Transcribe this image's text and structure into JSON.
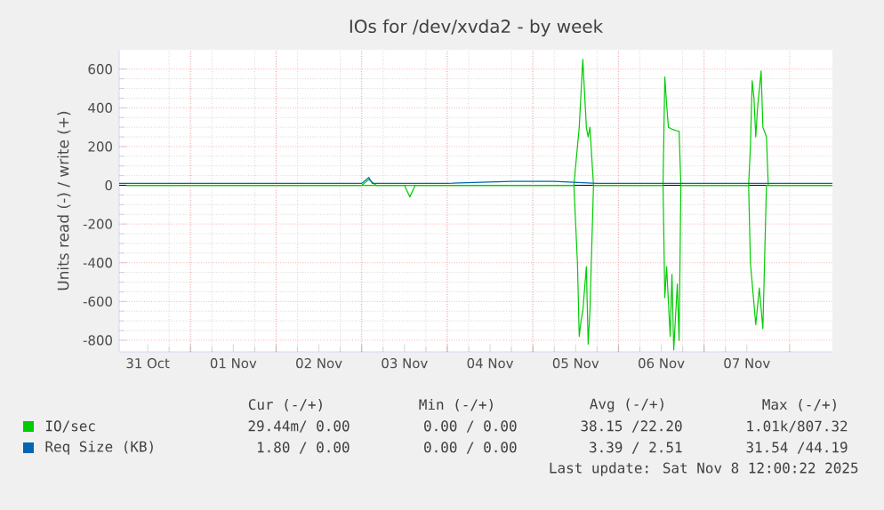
{
  "chart_data": {
    "type": "line",
    "title": "IOs for /dev/xvda2 - by week",
    "ylabel": "Units read (-) / write (+)",
    "xlim": [
      "2025-10-31T04:00",
      "2025-11-08T12:00"
    ],
    "xticks": [
      {
        "value": "2025-10-31T12:00",
        "label": "31 Oct"
      },
      {
        "value": "2025-11-01T12:00",
        "label": "01 Nov"
      },
      {
        "value": "2025-11-02T12:00",
        "label": "02 Nov"
      },
      {
        "value": "2025-11-03T12:00",
        "label": "03 Nov"
      },
      {
        "value": "2025-11-04T12:00",
        "label": "04 Nov"
      },
      {
        "value": "2025-11-05T12:00",
        "label": "05 Nov"
      },
      {
        "value": "2025-11-06T12:00",
        "label": "06 Nov"
      },
      {
        "value": "2025-11-07T12:00",
        "label": "07 Nov"
      },
      {
        "value": "2025-11-01T00:00",
        "label": null
      },
      {
        "value": "2025-11-02T00:00",
        "label": null
      },
      {
        "value": "2025-11-03T00:00",
        "label": null
      },
      {
        "value": "2025-11-04T00:00",
        "label": null
      },
      {
        "value": "2025-11-05T00:00",
        "label": null
      },
      {
        "value": "2025-11-06T00:00",
        "label": null
      },
      {
        "value": "2025-11-07T00:00",
        "label": null
      },
      {
        "value": "2025-11-08T00:00",
        "label": null
      }
    ],
    "ylim": [
      -860,
      700
    ],
    "yticks": [
      -800,
      -600,
      -400,
      -200,
      0,
      200,
      400,
      600
    ],
    "grid": true,
    "legend": "bottom",
    "ref_lines": [
      {
        "axis": "y",
        "value": 0,
        "color": "#000000"
      }
    ],
    "series": [
      {
        "name": "IO/sec",
        "color": "#00cc00",
        "x": [
          "2025-10-31T06:00",
          "2025-10-31T18:00",
          "2025-11-01T12:00",
          "2025-11-02T12:00",
          "2025-11-03T00:00",
          "2025-11-03T02:00",
          "2025-11-03T04:00",
          "2025-11-04T00:00",
          "2025-11-05T00:00",
          "2025-11-05T11:30",
          "2025-11-05T13:00",
          "2025-11-05T14:00",
          "2025-11-05T15:00",
          "2025-11-05T15:30",
          "2025-11-05T16:00",
          "2025-11-05T17:00",
          "2025-11-06T12:30",
          "2025-11-06T13:00",
          "2025-11-06T13:30",
          "2025-11-06T14:00",
          "2025-11-06T15:00",
          "2025-11-06T16:30",
          "2025-11-06T17:00",
          "2025-11-06T17:30",
          "2025-11-07T12:30",
          "2025-11-07T13:00",
          "2025-11-07T13:30",
          "2025-11-07T14:00",
          "2025-11-07T14:30",
          "2025-11-07T15:00",
          "2025-11-07T16:00",
          "2025-11-07T16:30",
          "2025-11-07T17:30",
          "2025-11-07T18:00",
          "2025-11-08T12:00"
        ],
        "values": [
          0,
          0,
          0,
          0,
          0,
          30,
          0,
          0,
          0,
          0,
          300,
          650,
          300,
          250,
          300,
          0,
          0,
          560,
          420,
          300,
          290,
          280,
          280,
          0,
          0,
          200,
          540,
          450,
          250,
          400,
          590,
          300,
          250,
          0,
          0
        ]
      },
      {
        "color": "#00cc00",
        "x": [
          "2025-10-31T06:00",
          "2025-11-01T12:00",
          "2025-11-03T12:00",
          "2025-11-03T13:30",
          "2025-11-03T15:00",
          "2025-11-05T11:30",
          "2025-11-05T12:30",
          "2025-11-05T13:00",
          "2025-11-05T13:30",
          "2025-11-05T14:00",
          "2025-11-05T15:00",
          "2025-11-05T15:30",
          "2025-11-05T16:00",
          "2025-11-05T17:00",
          "2025-11-06T12:30",
          "2025-11-06T13:00",
          "2025-11-06T13:30",
          "2025-11-06T14:30",
          "2025-11-06T15:00",
          "2025-11-06T15:30",
          "2025-11-06T16:30",
          "2025-11-06T17:00",
          "2025-11-06T17:30",
          "2025-11-07T12:30",
          "2025-11-07T13:00",
          "2025-11-07T14:30",
          "2025-11-07T15:30",
          "2025-11-07T16:30",
          "2025-11-07T17:30",
          "2025-11-08T12:00"
        ],
        "values": [
          0,
          0,
          0,
          -60,
          0,
          0,
          -400,
          -780,
          -700,
          -650,
          -420,
          -820,
          -650,
          0,
          0,
          -580,
          -420,
          -780,
          -460,
          -850,
          -510,
          -800,
          0,
          0,
          -400,
          -720,
          -530,
          -740,
          0,
          0
        ]
      },
      {
        "name": "Req Size (KB)",
        "color": "#0066b3",
        "x": [
          "2025-10-31T04:00",
          "2025-10-31T10:00",
          "2025-10-31T20:00",
          "2025-11-01T12:00",
          "2025-11-02T06:00",
          "2025-11-03T00:00",
          "2025-11-03T02:00",
          "2025-11-03T03:00",
          "2025-11-04T00:00",
          "2025-11-04T18:00",
          "2025-11-05T06:00",
          "2025-11-05T18:00",
          "2025-11-06T12:00",
          "2025-11-07T00:00",
          "2025-11-07T20:00",
          "2025-11-08T12:00"
        ],
        "values": [
          10,
          10,
          10,
          10,
          10,
          10,
          40,
          10,
          10,
          20,
          20,
          10,
          10,
          10,
          10,
          10
        ]
      }
    ],
    "annotations": [
      "Cur (-/+)",
      "Min (-/+)",
      "Avg (-/+)",
      "Max (-/+)",
      "29.44m/ 0.00",
      "0.00 / 0.00",
      "38.15 /22.20",
      "1.01k/807.32",
      "1.80 / 0.00",
      "0.00 / 0.00",
      "3.39 / 2.51",
      "31.54 /44.19",
      "Last update: Sat Nov  8 12:00:22 2025"
    ]
  }
}
